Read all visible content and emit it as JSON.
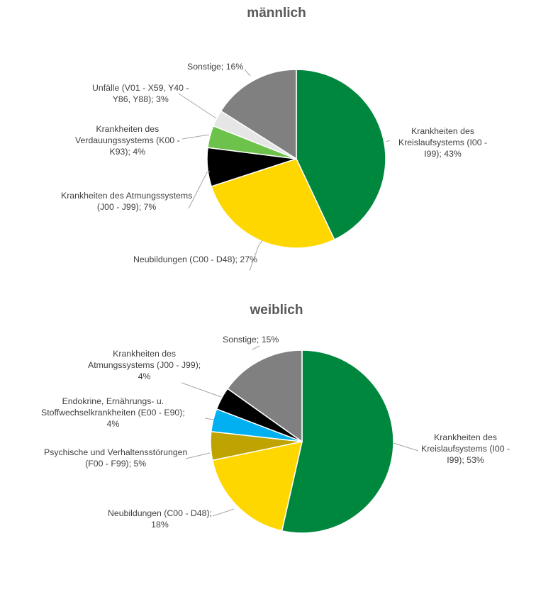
{
  "chart_data": [
    {
      "type": "pie",
      "title": "männlich",
      "slices": [
        {
          "name": "Krankheiten des Kreislaufsystems (I00 - I99)",
          "value": 43,
          "label": "Krankheiten des Kreislaufsystems (I00 - I99); 43%",
          "label_lines": [
            "Krankheiten des",
            "Kreislaufsystems (I00 -",
            "I99); 43%"
          ],
          "color": "#00873E"
        },
        {
          "name": "Neubildungen (C00 - D48)",
          "value": 27,
          "label": "Neubildungen (C00 - D48); 27%",
          "label_lines": [
            "Neubildungen (C00 - D48); 27%"
          ],
          "color": "#FFD700"
        },
        {
          "name": "Krankheiten des Atmungssystems (J00 - J99)",
          "value": 7,
          "label": "Krankheiten des Atmungssystems (J00 - J99); 7%",
          "label_lines": [
            "Krankheiten des Atmungssystems",
            "(J00 - J99); 7%"
          ],
          "color": "#000000"
        },
        {
          "name": "Krankheiten des Verdauungssystems (K00 - K93)",
          "value": 4,
          "label": "Krankheiten des Verdauungssystems (K00 - K93); 4%",
          "label_lines": [
            "Krankheiten des",
            "Verdauungssystems (K00 -",
            "K93); 4%"
          ],
          "color": "#6CC24A"
        },
        {
          "name": "Unfälle (V01 - X59, Y40 - Y86, Y88)",
          "value": 3,
          "label": "Unfälle (V01 - X59, Y40 - Y86, Y88); 3%",
          "label_lines": [
            "Unfälle (V01 - X59, Y40 -",
            "Y86, Y88); 3%"
          ],
          "color": "#E6E6E6"
        },
        {
          "name": "Sonstige",
          "value": 16,
          "label": "Sonstige; 16%",
          "label_lines": [
            "Sonstige; 16%"
          ],
          "color": "#808080"
        }
      ]
    },
    {
      "type": "pie",
      "title": "weiblich",
      "slices": [
        {
          "name": "Krankheiten des Kreislaufsystems (I00 - I99)",
          "value": 53,
          "label": "Krankheiten des Kreislaufsystems (I00 - I99); 53%",
          "label_lines": [
            "Krankheiten des",
            "Kreislaufsystems (I00 -",
            "I99); 53%"
          ],
          "color": "#00873E"
        },
        {
          "name": "Neubildungen (C00 - D48)",
          "value": 18,
          "label": "Neubildungen (C00 - D48); 18%",
          "label_lines": [
            "Neubildungen (C00 - D48);",
            "18%"
          ],
          "color": "#FFD700"
        },
        {
          "name": "Psychische und Verhaltensstörungen (F00 - F99)",
          "value": 5,
          "label": "Psychische und Verhaltensstörungen (F00 - F99); 5%",
          "label_lines": [
            "Psychische und Verhaltensstörungen",
            "(F00 - F99); 5%"
          ],
          "color": "#BFA300"
        },
        {
          "name": "Endokrine, Ernährungs- u. Stoffwechselkrankheiten (E00 - E90)",
          "value": 4,
          "label": "Endokrine, Ernährungs- u. Stoffwechselkrankheiten (E00 - E90); 4%",
          "label_lines": [
            "Endokrine, Ernährungs- u.",
            "Stoffwechselkrankheiten (E00 - E90);",
            "4%"
          ],
          "color": "#00B0F0"
        },
        {
          "name": "Krankheiten des Atmungssystems (J00 - J99)",
          "value": 4,
          "label": "Krankheiten des Atmungssystems (J00 - J99); 4%",
          "label_lines": [
            "Krankheiten des",
            "Atmungssystems (J00 - J99);",
            "4%"
          ],
          "color": "#000000"
        },
        {
          "name": "Sonstige",
          "value": 15,
          "label": "Sonstige; 15%",
          "label_lines": [
            "Sonstige; 15%"
          ],
          "color": "#808080"
        }
      ]
    }
  ]
}
